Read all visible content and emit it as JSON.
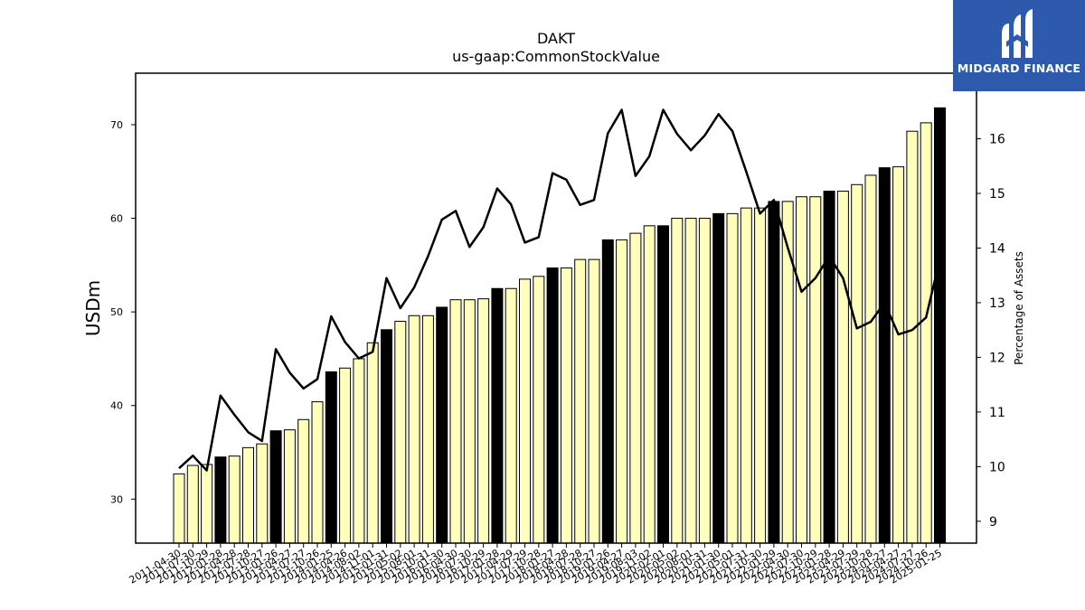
{
  "chart_data": {
    "type": "bar",
    "title": "DAKT",
    "subtitle": "us-gaap:CommonStockValue",
    "ylabel": "USDm",
    "y2label": "Percentage of Assets",
    "ylim": [
      25.3,
      75.5
    ],
    "y2lim": [
      8.6,
      17.2
    ],
    "yticks": [
      30,
      40,
      50,
      60,
      70
    ],
    "y2ticks": [
      9,
      10,
      11,
      12,
      13,
      14,
      15,
      16
    ],
    "grid": false,
    "colors": {
      "bar": "#ffffbb",
      "bar_highlight": "#000000",
      "edge": "#000000",
      "line": "#000000"
    },
    "categories": [
      "2011-04-30",
      "2011-07-30",
      "2011-10-29",
      "2012-01-28",
      "2012-04-28",
      "2012-07-28",
      "2012-10-27",
      "2013-01-26",
      "2013-04-27",
      "2013-07-27",
      "2013-10-26",
      "2014-01-25",
      "2014-04-26",
      "2014-08-02",
      "2014-11-01",
      "2015-01-31",
      "2015-05-02",
      "2015-08-01",
      "2015-10-31",
      "2016-01-30",
      "2016-04-30",
      "2016-07-30",
      "2016-10-29",
      "2017-01-28",
      "2017-04-29",
      "2017-07-29",
      "2017-10-28",
      "2018-01-27",
      "2018-04-28",
      "2018-07-28",
      "2018-10-27",
      "2019-01-26",
      "2019-04-27",
      "2019-08-03",
      "2019-11-02",
      "2020-02-01",
      "2020-05-02",
      "2020-08-01",
      "2020-10-31",
      "2021-01-30",
      "2021-05-01",
      "2021-07-31",
      "2021-10-30",
      "2022-01-29",
      "2022-04-30",
      "2022-07-30",
      "2022-10-29",
      "2023-01-28",
      "2023-04-29",
      "2023-07-29",
      "2023-10-28",
      "2024-01-27",
      "2024-04-27",
      "2024-07-27",
      "2024-10-26",
      "2025-01-25"
    ],
    "tick_labels": [
      "2011-04-30",
      "2011-07-30",
      "2011-10-29",
      "2012-01-28",
      "2012-04-28",
      "2012-07-28",
      "2012-10-27",
      "2013-01-26",
      "2013-04-27",
      "2013-07-27",
      "2013-10-26",
      "2014-01-25",
      "2014-04-26",
      "2014-08-02",
      "2014-11-01",
      "2015-01-31",
      "2015-05-02",
      "2015-08-01",
      "2015-10-31",
      "2016-01-30",
      "2016-04-30",
      "2016-07-30",
      "2016-10-29",
      "2017-01-28",
      "2017-04-29",
      "2017-07-29",
      "2017-10-28",
      "2018-01-27",
      "2018-04-28",
      "2018-07-28",
      "2018-10-27",
      "2019-01-26",
      "2019-04-27",
      "2019-08-03",
      "2019-11-02",
      "2020-02-01",
      "2020-05-02",
      "2020-08-01",
      "2020-10-31",
      "2021-01-30",
      "2021-05-01",
      "2021-07-31",
      "2021-10-30",
      "2022-01-29",
      "2022-04-30",
      "2022-07-30",
      "2022-10-29",
      "2023-01-28",
      "2023-04-29",
      "2023-07-29",
      "2023-10-28",
      "2024-01-27",
      "2024-04-27",
      "2024-07-27",
      "2024-10-26",
      "2025-01-25"
    ],
    "values": [
      32.7,
      33.6,
      33.7,
      34.5,
      34.6,
      35.5,
      35.9,
      37.3,
      37.4,
      38.5,
      40.4,
      43.6,
      44.0,
      45.0,
      46.7,
      48.1,
      49.0,
      49.6,
      49.6,
      50.5,
      51.3,
      51.3,
      51.4,
      52.5,
      52.5,
      53.5,
      53.8,
      54.7,
      54.7,
      55.6,
      55.6,
      57.7,
      57.7,
      58.4,
      59.2,
      59.2,
      60.0,
      60.0,
      60.0,
      60.5,
      60.5,
      61.1,
      61.1,
      61.8,
      61.8,
      62.3,
      62.3,
      62.9,
      62.9,
      63.6,
      64.6,
      65.4,
      65.5,
      69.3,
      70.2,
      71.8
    ],
    "highlight": [
      false,
      false,
      false,
      true,
      false,
      false,
      false,
      true,
      false,
      false,
      false,
      true,
      false,
      false,
      false,
      true,
      false,
      false,
      false,
      true,
      false,
      false,
      false,
      true,
      false,
      false,
      false,
      true,
      false,
      false,
      false,
      true,
      false,
      false,
      false,
      true,
      false,
      false,
      false,
      true,
      false,
      false,
      false,
      true,
      false,
      false,
      false,
      true,
      false,
      false,
      false,
      true,
      false,
      false,
      false,
      true
    ],
    "line_values": [
      9.97,
      10.2,
      9.93,
      11.3,
      10.95,
      10.63,
      10.47,
      12.15,
      11.72,
      11.43,
      11.6,
      12.75,
      12.28,
      11.98,
      12.1,
      13.45,
      12.9,
      13.28,
      13.85,
      14.52,
      14.68,
      14.02,
      14.38,
      15.09,
      14.8,
      14.1,
      14.2,
      15.37,
      15.25,
      14.79,
      14.88,
      16.1,
      16.53,
      15.32,
      15.68,
      16.53,
      16.09,
      15.79,
      16.06,
      16.45,
      16.14,
      15.4,
      14.63,
      14.88,
      14.01,
      13.2,
      13.45,
      13.85,
      13.45,
      12.53,
      12.65,
      13.0,
      12.42,
      12.5,
      12.73,
      13.8
    ]
  },
  "brand": {
    "name": "MIDGARD FINANCE",
    "logo_icon": "midgard-logo-icon",
    "color": "#2d5aac"
  }
}
